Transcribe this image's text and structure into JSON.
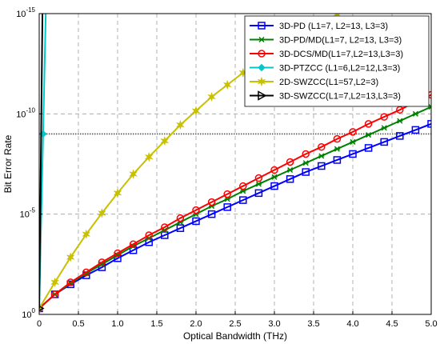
{
  "chart_data": {
    "type": "line",
    "xlabel": "Optical Bandwidth (THz)",
    "ylabel": "Bit Error Rate",
    "xlim": [
      0,
      5
    ],
    "ylim_log10": [
      -15,
      0
    ],
    "yscale": "log",
    "grid": true,
    "x_ticks": [
      "0",
      "0.5",
      "1.0",
      "1.5",
      "2.0",
      "2.5",
      "3.0",
      "3.5",
      "4.0",
      "4.5",
      "5.0"
    ],
    "y_ticks": [
      {
        "base": "10",
        "exp": "0"
      },
      {
        "base": "10",
        "exp": "-5"
      },
      {
        "base": "10",
        "exp": "-10"
      },
      {
        "base": "10",
        "exp": "-15"
      }
    ],
    "legend_position": "top-right",
    "reference_line_log10": -9,
    "series": [
      {
        "name": "3D-PD (L1=7, L2=13, L3=3)",
        "color": "#0000ff",
        "marker": "square",
        "x": [
          0,
          0.2,
          0.4,
          0.6,
          0.8,
          1.0,
          1.2,
          1.4,
          1.6,
          1.8,
          2.0,
          2.2,
          2.4,
          2.6,
          2.8,
          3.0,
          3.2,
          3.4,
          3.6,
          3.8,
          4.0,
          4.2,
          4.4,
          4.6,
          4.8,
          5.0
        ],
        "log10_y": [
          -0.3,
          -1.0,
          -1.5,
          -1.95,
          -2.35,
          -2.8,
          -3.2,
          -3.6,
          -3.95,
          -4.3,
          -4.65,
          -5.0,
          -5.35,
          -5.7,
          -6.05,
          -6.4,
          -6.75,
          -7.1,
          -7.4,
          -7.7,
          -8.0,
          -8.3,
          -8.6,
          -8.9,
          -9.2,
          -9.5
        ]
      },
      {
        "name": "3D-PD/MD(L1=7, L2=13, L3=3)",
        "color": "#008000",
        "marker": "x",
        "x": [
          0,
          0.2,
          0.4,
          0.6,
          0.8,
          1.0,
          1.2,
          1.4,
          1.6,
          1.8,
          2.0,
          2.2,
          2.4,
          2.6,
          2.8,
          3.0,
          3.2,
          3.4,
          3.6,
          3.8,
          4.0,
          4.2,
          4.4,
          4.6,
          4.8,
          5.0
        ],
        "log10_y": [
          -0.3,
          -1.0,
          -1.55,
          -2.05,
          -2.5,
          -2.95,
          -3.4,
          -3.8,
          -4.2,
          -4.6,
          -5.0,
          -5.4,
          -5.75,
          -6.15,
          -6.5,
          -6.85,
          -7.2,
          -7.55,
          -7.9,
          -8.25,
          -8.6,
          -8.95,
          -9.3,
          -9.65,
          -10.0,
          -10.35
        ]
      },
      {
        "name": "3D-DCS/MD(L1=7,L2=13,L3=3)",
        "color": "#ff0000",
        "marker": "circle",
        "x": [
          0,
          0.2,
          0.4,
          0.6,
          0.8,
          1.0,
          1.2,
          1.4,
          1.6,
          1.8,
          2.0,
          2.2,
          2.4,
          2.6,
          2.8,
          3.0,
          3.2,
          3.4,
          3.6,
          3.8,
          4.0,
          4.2,
          4.4,
          4.6,
          4.8,
          5.0
        ],
        "log10_y": [
          -0.3,
          -1.0,
          -1.6,
          -2.1,
          -2.6,
          -3.05,
          -3.5,
          -3.95,
          -4.35,
          -4.8,
          -5.2,
          -5.6,
          -6.0,
          -6.4,
          -6.8,
          -7.2,
          -7.6,
          -8.0,
          -8.35,
          -8.75,
          -9.1,
          -9.5,
          -9.85,
          -10.2,
          -10.6,
          -10.95
        ]
      },
      {
        "name": "3D-PTZCC (L1=6,L2=12,L3=3)",
        "color": "#00c8c8",
        "marker": "diamond",
        "x": [
          0,
          0.05,
          0.1
        ],
        "log10_y": [
          -0.3,
          -9.0,
          -18.0
        ]
      },
      {
        "name": "2D-SWZCC(L1=57,L2=3)",
        "color": "#c8c000",
        "marker": "star",
        "x": [
          0,
          0.2,
          0.4,
          0.6,
          0.8,
          1.0,
          1.2,
          1.4,
          1.6,
          1.8,
          2.0,
          2.2,
          2.4,
          2.6,
          2.8,
          3.0,
          3.2,
          3.4,
          3.6,
          3.8,
          4.0
        ],
        "log10_y": [
          -0.3,
          -1.6,
          -2.85,
          -4.0,
          -5.05,
          -6.05,
          -7.0,
          -7.85,
          -8.65,
          -9.45,
          -10.15,
          -10.85,
          -11.45,
          -12.05,
          -12.6,
          -13.15,
          -13.65,
          -14.1,
          -14.55,
          -14.95,
          -15.3
        ]
      },
      {
        "name": "3D-SWZCC(L1=7,L2=13,L3=3)",
        "color": "#000000",
        "marker": "triangle",
        "x": [
          0,
          0.05
        ],
        "log10_y": [
          -0.3,
          -18.0
        ]
      }
    ]
  }
}
